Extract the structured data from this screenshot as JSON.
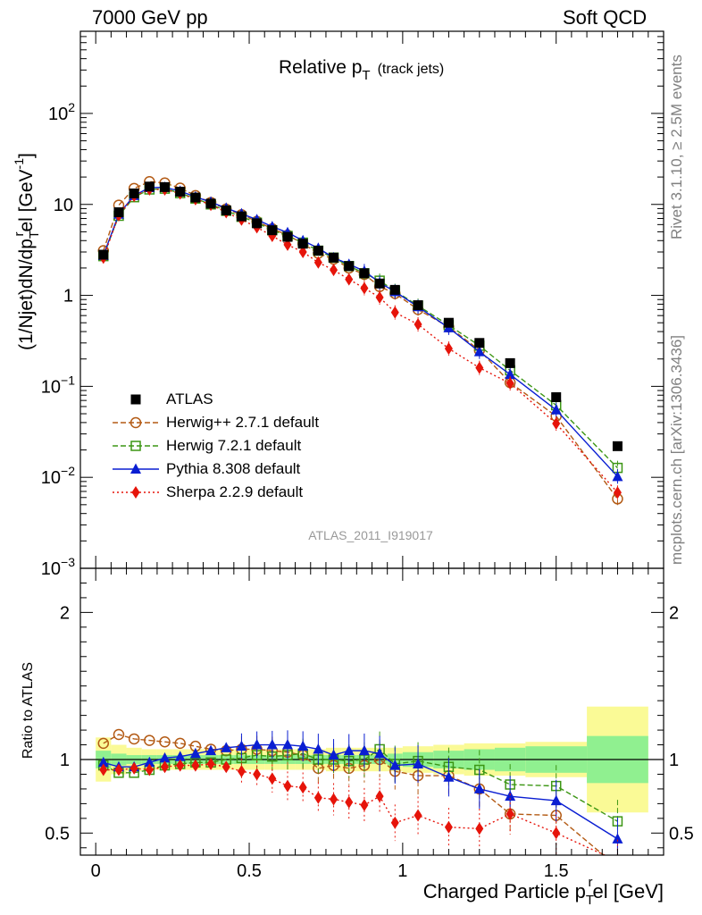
{
  "header": {
    "left": "7000 GeV pp",
    "right": "Soft QCD"
  },
  "side": {
    "rivet": "Rivet 3.1.10, ≥ 2.5M events",
    "mcplots": "mcplots.cern.ch [arXiv:1306.3436]"
  },
  "colors": {
    "ATLAS": "#000000",
    "Herwig++ 2.7.1 default": "#b35a14",
    "Herwig 7.2.1 default": "#3c9614",
    "Pythia 8.308 default": "#0a1ed2",
    "Sherpa 2.2.9 default": "#e6140a",
    "band_inner": "#90f090",
    "band_outer": "#fafa96"
  },
  "chart_data": [
    {
      "type": "line",
      "title": "Relative p_T (track jets)",
      "title_main": "Relative p",
      "title_sub": "T",
      "title_note": "(track jets)",
      "ylabel": "(1/Njet)dN/dp_T^rel [GeV^-1]",
      "ylabel_parts": {
        "a": "(1/Njet)dN/dp",
        "b": "T",
        "c": "r",
        "d": "el [GeV",
        "e": "-1",
        "f": "]"
      },
      "yscale": "log",
      "xlim": [
        -0.05,
        1.85
      ],
      "ylim": [
        0.001,
        800
      ],
      "yticks": [
        {
          "v": 0.001,
          "label": "10",
          "exp": "−3"
        },
        {
          "v": 0.01,
          "label": "10",
          "exp": "−2"
        },
        {
          "v": 0.1,
          "label": "10",
          "exp": "−1"
        },
        {
          "v": 1,
          "label": "1",
          "exp": ""
        },
        {
          "v": 10,
          "label": "10",
          "exp": ""
        },
        {
          "v": 100,
          "label": "10",
          "exp": "2"
        }
      ],
      "watermark": "ATLAS_2011_I919017",
      "legend_position": "lower-left",
      "legend": [
        "ATLAS",
        "Herwig++ 2.7.1 default",
        "Herwig 7.2.1 default",
        "Pythia 8.308 default",
        "Sherpa 2.2.9 default"
      ],
      "x": [
        0.025,
        0.075,
        0.125,
        0.175,
        0.225,
        0.275,
        0.325,
        0.375,
        0.425,
        0.475,
        0.525,
        0.575,
        0.625,
        0.675,
        0.725,
        0.775,
        0.825,
        0.875,
        0.925,
        0.975,
        1.05,
        1.15,
        1.25,
        1.35,
        1.5,
        1.7
      ],
      "series": [
        {
          "name": "ATLAS",
          "values": [
            2.8,
            8.2,
            13.2,
            15.7,
            15.5,
            13.8,
            11.9,
            10.2,
            8.6,
            7.4,
            6.2,
            5.2,
            4.4,
            3.7,
            3.1,
            2.6,
            2.1,
            1.75,
            1.35,
            1.15,
            0.78,
            0.5,
            0.3,
            0.18,
            0.076,
            0.022
          ]
        },
        {
          "name": "Herwig++ 2.7.1 default",
          "values": [
            3.1,
            9.8,
            15.0,
            17.8,
            17.2,
            15.1,
            12.5,
            10.5,
            8.9,
            7.7,
            6.5,
            5.4,
            4.6,
            3.7,
            2.9,
            2.5,
            2.0,
            1.7,
            1.25,
            1.05,
            0.7,
            0.45,
            0.25,
            0.11,
            0.047,
            0.0058
          ]
        },
        {
          "name": "Herwig 7.2.1 default",
          "values": [
            2.7,
            7.5,
            12.0,
            14.6,
            14.9,
            13.3,
            11.6,
            10.0,
            8.5,
            7.3,
            6.3,
            5.2,
            4.5,
            3.8,
            3.1,
            2.6,
            2.1,
            1.75,
            1.45,
            1.12,
            0.77,
            0.47,
            0.28,
            0.15,
            0.062,
            0.0127
          ]
        },
        {
          "name": "Pythia 8.308 default",
          "values": [
            2.75,
            7.8,
            12.5,
            15.3,
            15.4,
            14.0,
            12.1,
            10.6,
            9.1,
            7.9,
            6.8,
            5.7,
            4.9,
            4.0,
            3.3,
            2.6,
            2.2,
            1.85,
            1.38,
            1.1,
            0.75,
            0.44,
            0.24,
            0.135,
            0.055,
            0.0102
          ]
        },
        {
          "name": "Sherpa 2.2.9 default",
          "values": [
            2.6,
            7.6,
            12.4,
            14.6,
            14.6,
            13.2,
            11.4,
            9.9,
            8.2,
            6.8,
            5.6,
            4.5,
            3.6,
            3.0,
            2.3,
            1.9,
            1.5,
            1.2,
            0.95,
            0.65,
            0.48,
            0.26,
            0.16,
            0.108,
            0.039,
            0.0068
          ]
        }
      ]
    },
    {
      "type": "line",
      "ylabel": "Ratio to ATLAS",
      "xlabel": "Charged Particle p_T^rel [GeV]",
      "xlabel_parts": {
        "a": "Charged Particle p",
        "b": "T",
        "c": "r",
        "d": "el [GeV]"
      },
      "xlim": [
        -0.05,
        1.85
      ],
      "ylim": [
        0.35,
        2.3
      ],
      "yticks": [
        "0.5",
        "1",
        "2"
      ],
      "xticks": [
        "0",
        "0.5",
        "1",
        "1.5"
      ],
      "reference_line": 1,
      "band_edges": [
        0,
        0.05,
        0.1,
        0.15,
        0.2,
        0.25,
        0.3,
        0.35,
        0.4,
        0.45,
        0.5,
        0.55,
        0.6,
        0.65,
        0.7,
        0.75,
        0.8,
        0.85,
        0.9,
        0.95,
        1.0,
        1.1,
        1.2,
        1.3,
        1.4,
        1.6,
        1.8
      ],
      "band_inner": [
        0.06,
        0.04,
        0.03,
        0.03,
        0.03,
        0.03,
        0.03,
        0.03,
        0.03,
        0.03,
        0.03,
        0.03,
        0.03,
        0.03,
        0.03,
        0.03,
        0.03,
        0.03,
        0.03,
        0.04,
        0.05,
        0.06,
        0.07,
        0.08,
        0.09,
        0.16
      ],
      "band_outer": [
        0.15,
        0.1,
        0.08,
        0.07,
        0.07,
        0.07,
        0.07,
        0.07,
        0.07,
        0.07,
        0.07,
        0.07,
        0.07,
        0.07,
        0.07,
        0.08,
        0.08,
        0.08,
        0.08,
        0.08,
        0.09,
        0.1,
        0.11,
        0.11,
        0.12,
        0.36
      ],
      "x": [
        0.025,
        0.075,
        0.125,
        0.175,
        0.225,
        0.275,
        0.325,
        0.375,
        0.425,
        0.475,
        0.525,
        0.575,
        0.625,
        0.675,
        0.725,
        0.775,
        0.825,
        0.875,
        0.925,
        0.975,
        1.05,
        1.15,
        1.25,
        1.35,
        1.5,
        1.7
      ],
      "series": [
        {
          "name": "Herwig++ 2.7.1 default",
          "values": [
            1.11,
            1.17,
            1.14,
            1.13,
            1.12,
            1.11,
            1.09,
            1.07,
            1.06,
            1.07,
            1.07,
            1.06,
            1.05,
            1.03,
            0.94,
            0.96,
            0.94,
            0.96,
            1.0,
            0.92,
            0.89,
            0.89,
            0.8,
            0.63,
            0.62,
            0.27
          ]
        },
        {
          "name": "Herwig 7.2.1 default",
          "values": [
            0.96,
            0.91,
            0.91,
            0.93,
            0.96,
            0.97,
            0.98,
            0.98,
            1.0,
            1.01,
            1.03,
            1.02,
            1.03,
            1.04,
            1.0,
            1.0,
            0.99,
            1.0,
            1.07,
            0.97,
            0.99,
            0.95,
            0.93,
            0.83,
            0.82,
            0.58
          ]
        },
        {
          "name": "Pythia 8.308 default",
          "values": [
            0.98,
            0.95,
            0.95,
            0.98,
            1.01,
            1.02,
            1.04,
            1.06,
            1.08,
            1.09,
            1.1,
            1.1,
            1.1,
            1.09,
            1.07,
            1.03,
            1.06,
            1.06,
            1.04,
            0.96,
            0.97,
            0.88,
            0.8,
            0.75,
            0.72,
            0.46
          ]
        },
        {
          "name": "Sherpa 2.2.9 default",
          "values": [
            0.93,
            0.93,
            0.94,
            0.93,
            0.95,
            0.96,
            0.96,
            0.97,
            0.95,
            0.92,
            0.9,
            0.87,
            0.82,
            0.81,
            0.74,
            0.73,
            0.71,
            0.69,
            0.75,
            0.57,
            0.62,
            0.54,
            0.53,
            0.63,
            0.5,
            0.31
          ]
        }
      ]
    }
  ]
}
